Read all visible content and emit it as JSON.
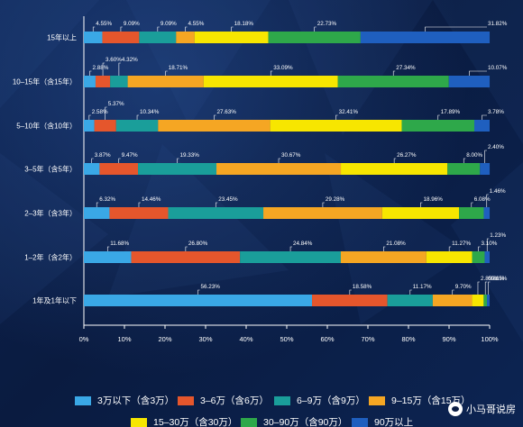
{
  "chart_data": {
    "type": "bar",
    "orientation": "horizontal",
    "stacked": true,
    "categories": [
      "15年以上",
      "10–15年（含15年）",
      "5–10年（含10年）",
      "3–5年（含5年）",
      "2–3年（含3年）",
      "1–2年（含2年）",
      "1年及1年以下"
    ],
    "series": [
      {
        "name": "3万以下（含3万）",
        "color": "#3aa8e6",
        "values": [
          4.55,
          2.88,
          2.58,
          3.87,
          6.32,
          11.68,
          56.23
        ]
      },
      {
        "name": "3–6万（含6万）",
        "color": "#e5562c",
        "values": [
          9.09,
          3.6,
          5.37,
          9.47,
          14.46,
          26.8,
          18.58
        ]
      },
      {
        "name": "6–9万（含9万）",
        "color": "#1a9e9a",
        "values": [
          9.09,
          4.32,
          10.34,
          19.33,
          23.45,
          24.84,
          11.17
        ]
      },
      {
        "name": "9–15万（含15万）",
        "color": "#f5a623",
        "values": [
          4.55,
          18.71,
          27.63,
          30.67,
          29.28,
          21.08,
          9.7
        ]
      },
      {
        "name": "15–30万（含30万）",
        "color": "#f7e600",
        "values": [
          18.18,
          33.09,
          32.41,
          26.27,
          18.96,
          11.27,
          2.85
        ]
      },
      {
        "name": "30–90万（含90万）",
        "color": "#2ea84a",
        "values": [
          22.73,
          27.34,
          17.89,
          8.0,
          6.08,
          3.1,
          0.81
        ]
      },
      {
        "name": "90万以上",
        "color": "#1f5fbf",
        "values": [
          31.82,
          10.07,
          3.78,
          2.4,
          1.46,
          1.23,
          0.65
        ]
      }
    ],
    "labels": [
      [
        "4.55%",
        "9.09%",
        "9.09%",
        "4.55%",
        "18.18%",
        "22.73%",
        "31.82%"
      ],
      [
        "2.88%",
        "3.60%",
        "4.32%",
        "18.71%",
        "33.09%",
        "27.34%",
        "10.07%"
      ],
      [
        "2.58%",
        "5.37%",
        "10.34%",
        "27.63%",
        "32.41%",
        "17.89%",
        "3.78%"
      ],
      [
        "3.87%",
        "9.47%",
        "19.33%",
        "30.67%",
        "26.27%",
        "8.00%",
        "2.40%"
      ],
      [
        "6.32%",
        "14.46%",
        "23.45%",
        "29.28%",
        "18.96%",
        "6.08%",
        "1.46%"
      ],
      [
        "11.68%",
        "26.80%",
        "24.84%",
        "21.08%",
        "11.27%",
        "3.10%",
        "1.23%"
      ],
      [
        "56.23%",
        "18.58%",
        "11.17%",
        "9.70%",
        "2.85%",
        "0.81%",
        "0.65%"
      ]
    ],
    "xticks": [
      "0%",
      "10%",
      "20%",
      "30%",
      "40%",
      "50%",
      "60%",
      "70%",
      "80%",
      "90%",
      "100%"
    ],
    "xlim": [
      0,
      100
    ],
    "grid": false,
    "legend": "bottom"
  },
  "legend_items": [
    {
      "label": "3万以下（含3万）",
      "color": "#3aa8e6"
    },
    {
      "label": "3–6万（含6万）",
      "color": "#e5562c"
    },
    {
      "label": "6–9万（含9万）",
      "color": "#1a9e9a"
    },
    {
      "label": "9–15万（含15万）",
      "color": "#f5a623"
    },
    {
      "label": "15–30万（含30万）",
      "color": "#f7e600"
    },
    {
      "label": "30–90万（含90万）",
      "color": "#2ea84a"
    },
    {
      "label": "90万以上",
      "color": "#1f5fbf"
    }
  ],
  "watermark": {
    "text": "小马哥说房",
    "icon": "wechat-icon"
  }
}
